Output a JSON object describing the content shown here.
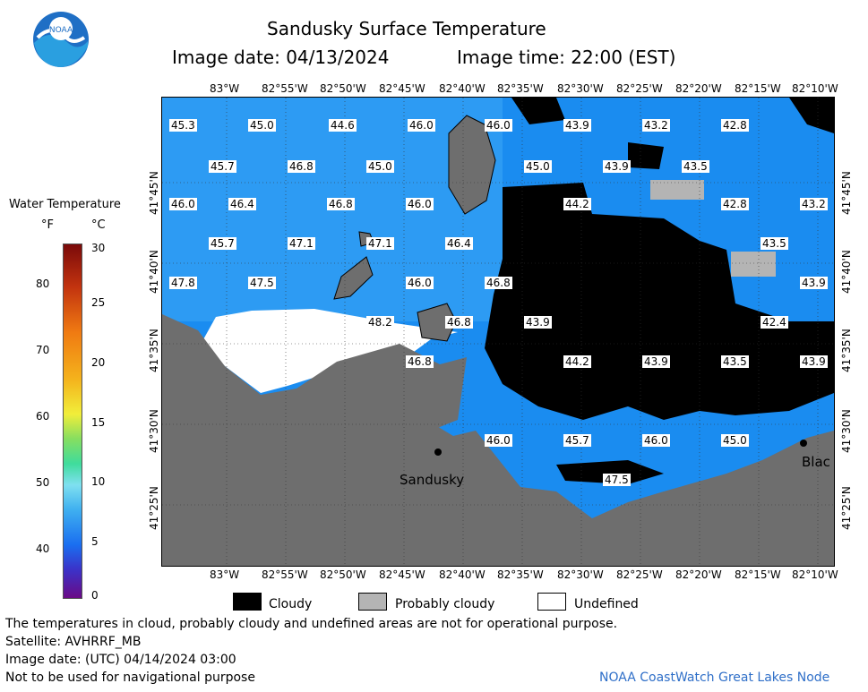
{
  "header": {
    "title": "Sandusky Surface Temperature",
    "image_date": "Image date: 04/13/2024",
    "image_time": "Image time: 22:00 (EST)"
  },
  "logo": {
    "text": "NOAA"
  },
  "colorbar": {
    "title": "Water Temperature",
    "unit_f": "°F",
    "unit_c": "°C",
    "f_ticks": [
      "80",
      "70",
      "60",
      "50",
      "40"
    ],
    "c_ticks": [
      "30",
      "25",
      "20",
      "15",
      "10",
      "5",
      "0"
    ]
  },
  "map": {
    "lon_labels_top": [
      "83°W",
      "82°55'W",
      "82°50'W",
      "82°45'W",
      "82°40'W",
      "82°35'W",
      "82°30'W",
      "82°25'W",
      "82°20'W",
      "82°15'W",
      "82°10'W"
    ],
    "lon_labels_bottom": [
      "83°W",
      "82°55'W",
      "82°50'W",
      "82°45'W",
      "82°40'W",
      "82°35'W",
      "82°30'W",
      "82°25'W",
      "82°20'W",
      "82°15'W",
      "82°10'W"
    ],
    "lat_labels": [
      "41°45'N",
      "41°40'N",
      "41°35'N",
      "41°30'N",
      "41°25'N"
    ],
    "place_labels": [
      "Sandusky",
      "Blac"
    ],
    "temps": [
      "45.3",
      "45.0",
      "44.6",
      "46.0",
      "46.0",
      "43.9",
      "43.2",
      "42.8",
      "45.7",
      "46.8",
      "45.0",
      "45.0",
      "43.9",
      "43.5",
      "46.0",
      "46.4",
      "46.8",
      "46.0",
      "44.2",
      "42.8",
      "43.2",
      "45.7",
      "47.1",
      "47.1",
      "46.4",
      "43.5",
      "47.8",
      "47.5",
      "46.0",
      "46.8",
      "43.9",
      "48.2",
      "46.8",
      "43.9",
      "42.4",
      "46.8",
      "44.2",
      "43.9",
      "43.5",
      "43.9",
      "46.0",
      "45.7",
      "46.0",
      "45.0",
      "47.5"
    ]
  },
  "legend": {
    "cloudy": "Cloudy",
    "probably_cloudy": "Probably cloudy",
    "undefined": "Undefined"
  },
  "footer": {
    "disclaimer": "The temperatures in cloud, probably cloudy and undefined areas are not for operational purpose.",
    "satellite": "Satellite: AVHRRF_MB",
    "utc_date": "Image date: (UTC) 04/14/2024  03:00",
    "nav_warning": "Not to be used for navigational purpose",
    "credit": "NOAA CoastWatch Great Lakes Node"
  },
  "colors": {
    "water": "#1a8cf0",
    "land": "#6e6e6e",
    "cloud": "#000000",
    "probably_cloudy": "#b4b4b4",
    "undefined": "#ffffff",
    "credit": "#2f6fc8"
  }
}
